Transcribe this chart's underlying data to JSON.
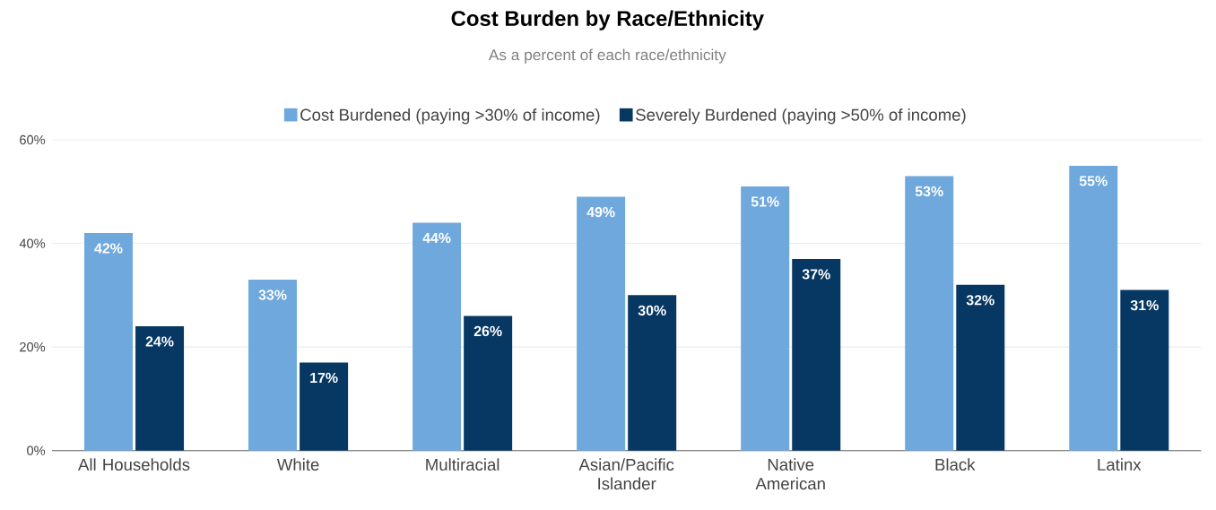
{
  "chart_data": {
    "type": "bar",
    "title": "Cost Burden by Race/Ethnicity",
    "subtitle": "As a percent of each race/ethnicity",
    "categories": [
      "All Households",
      "White",
      "Multiracial",
      "Asian/Pacific Islander",
      "Native American",
      "Black",
      "Latinx"
    ],
    "series": [
      {
        "name": "Cost Burdened (paying >30% of income)",
        "color": "#6fa8dc",
        "values": [
          42,
          33,
          44,
          49,
          51,
          53,
          55
        ],
        "value_labels": [
          "42%",
          "33%",
          "44%",
          "49%",
          "51%",
          "53%",
          "55%"
        ]
      },
      {
        "name": "Severely Burdened (paying >50% of income)",
        "color": "#073763",
        "values": [
          24,
          17,
          26,
          30,
          37,
          32,
          31
        ],
        "value_labels": [
          "24%",
          "17%",
          "26%",
          "30%",
          "37%",
          "32%",
          "31%"
        ]
      }
    ],
    "ylim": [
      0,
      60
    ],
    "yticks": [
      {
        "value": 0,
        "label": "0%"
      },
      {
        "value": 20,
        "label": "20%"
      },
      {
        "value": 40,
        "label": "40%"
      },
      {
        "value": 60,
        "label": "60%"
      }
    ],
    "grid": "y",
    "legend": "top"
  }
}
